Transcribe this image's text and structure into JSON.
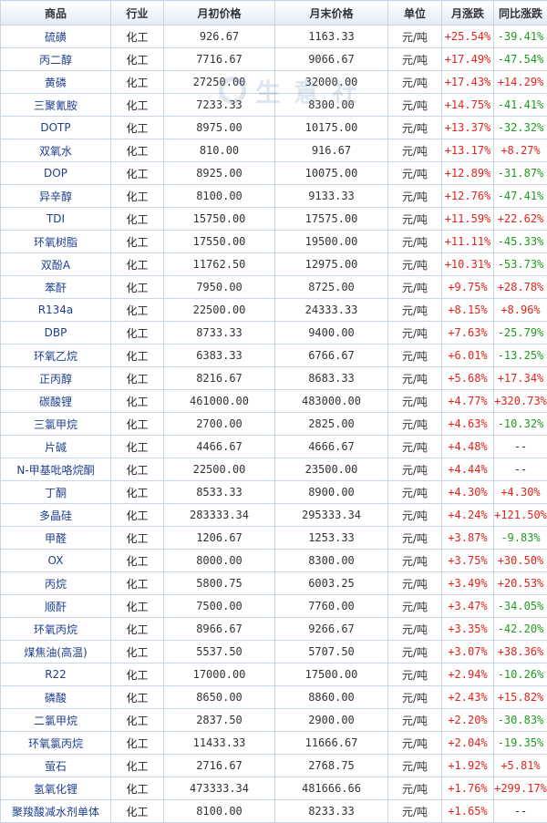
{
  "table": {
    "headers": [
      "商品",
      "行业",
      "月初价格",
      "月末价格",
      "单位",
      "月涨跌",
      "同比涨跌"
    ],
    "rows": [
      [
        "硫磺",
        "化工",
        "926.67",
        "1163.33",
        "元/吨",
        "+25.54%",
        "-39.41%"
      ],
      [
        "丙二醇",
        "化工",
        "7716.67",
        "9066.67",
        "元/吨",
        "+17.49%",
        "-47.54%"
      ],
      [
        "黄磷",
        "化工",
        "27250.00",
        "32000.00",
        "元/吨",
        "+17.43%",
        "+14.29%"
      ],
      [
        "三聚氰胺",
        "化工",
        "7233.33",
        "8300.00",
        "元/吨",
        "+14.75%",
        "-41.41%"
      ],
      [
        "DOTP",
        "化工",
        "8975.00",
        "10175.00",
        "元/吨",
        "+13.37%",
        "-32.32%"
      ],
      [
        "双氧水",
        "化工",
        "810.00",
        "916.67",
        "元/吨",
        "+13.17%",
        "+8.27%"
      ],
      [
        "DOP",
        "化工",
        "8925.00",
        "10075.00",
        "元/吨",
        "+12.89%",
        "-31.87%"
      ],
      [
        "异辛醇",
        "化工",
        "8100.00",
        "9133.33",
        "元/吨",
        "+12.76%",
        "-47.41%"
      ],
      [
        "TDI",
        "化工",
        "15750.00",
        "17575.00",
        "元/吨",
        "+11.59%",
        "+22.62%"
      ],
      [
        "环氧树脂",
        "化工",
        "17550.00",
        "19500.00",
        "元/吨",
        "+11.11%",
        "-45.33%"
      ],
      [
        "双酚A",
        "化工",
        "11762.50",
        "12975.00",
        "元/吨",
        "+10.31%",
        "-53.73%"
      ],
      [
        "苯酐",
        "化工",
        "7950.00",
        "8725.00",
        "元/吨",
        "+9.75%",
        "+28.78%"
      ],
      [
        "R134a",
        "化工",
        "22500.00",
        "24333.33",
        "元/吨",
        "+8.15%",
        "+8.96%"
      ],
      [
        "DBP",
        "化工",
        "8733.33",
        "9400.00",
        "元/吨",
        "+7.63%",
        "-25.79%"
      ],
      [
        "环氧乙烷",
        "化工",
        "6383.33",
        "6766.67",
        "元/吨",
        "+6.01%",
        "-13.25%"
      ],
      [
        "正丙醇",
        "化工",
        "8216.67",
        "8683.33",
        "元/吨",
        "+5.68%",
        "+17.34%"
      ],
      [
        "碳酸锂",
        "化工",
        "461000.00",
        "483000.00",
        "元/吨",
        "+4.77%",
        "+320.73%"
      ],
      [
        "三氯甲烷",
        "化工",
        "2700.00",
        "2825.00",
        "元/吨",
        "+4.63%",
        "-10.32%"
      ],
      [
        "片碱",
        "化工",
        "4466.67",
        "4666.67",
        "元/吨",
        "+4.48%",
        "--"
      ],
      [
        "N-甲基吡咯烷酮",
        "化工",
        "22500.00",
        "23500.00",
        "元/吨",
        "+4.44%",
        "--"
      ],
      [
        "丁酮",
        "化工",
        "8533.33",
        "8900.00",
        "元/吨",
        "+4.30%",
        "+4.30%"
      ],
      [
        "多晶硅",
        "化工",
        "283333.34",
        "295333.34",
        "元/吨",
        "+4.24%",
        "+121.50%"
      ],
      [
        "甲醛",
        "化工",
        "1206.67",
        "1253.33",
        "元/吨",
        "+3.87%",
        "-9.83%"
      ],
      [
        "OX",
        "化工",
        "8000.00",
        "8300.00",
        "元/吨",
        "+3.75%",
        "+30.50%"
      ],
      [
        "丙烷",
        "化工",
        "5800.75",
        "6003.25",
        "元/吨",
        "+3.49%",
        "+20.53%"
      ],
      [
        "顺酐",
        "化工",
        "7500.00",
        "7760.00",
        "元/吨",
        "+3.47%",
        "-34.05%"
      ],
      [
        "环氧丙烷",
        "化工",
        "8966.67",
        "9266.67",
        "元/吨",
        "+3.35%",
        "-42.20%"
      ],
      [
        "煤焦油(高温)",
        "化工",
        "5537.50",
        "5707.50",
        "元/吨",
        "+3.07%",
        "+38.36%"
      ],
      [
        "R22",
        "化工",
        "17000.00",
        "17500.00",
        "元/吨",
        "+2.94%",
        "-10.26%"
      ],
      [
        "磷酸",
        "化工",
        "8650.00",
        "8860.00",
        "元/吨",
        "+2.43%",
        "+15.82%"
      ],
      [
        "二氯甲烷",
        "化工",
        "2837.50",
        "2900.00",
        "元/吨",
        "+2.20%",
        "-30.83%"
      ],
      [
        "环氧氯丙烷",
        "化工",
        "11433.33",
        "11666.67",
        "元/吨",
        "+2.04%",
        "-19.35%"
      ],
      [
        "萤石",
        "化工",
        "2716.67",
        "2768.75",
        "元/吨",
        "+1.92%",
        "+5.81%"
      ],
      [
        "氢氧化锂",
        "化工",
        "473333.34",
        "481666.66",
        "元/吨",
        "+1.76%",
        "+299.17%"
      ],
      [
        "聚羧酸减水剂单体",
        "化工",
        "8100.00",
        "8233.33",
        "元/吨",
        "+1.65%",
        "--"
      ]
    ]
  },
  "watermark": {
    "text": "生意社"
  },
  "colors": {
    "rise": "#e2231a",
    "fall": "#1f9a1f",
    "name": "#1e3f8f",
    "border": "#c9d6e6"
  }
}
